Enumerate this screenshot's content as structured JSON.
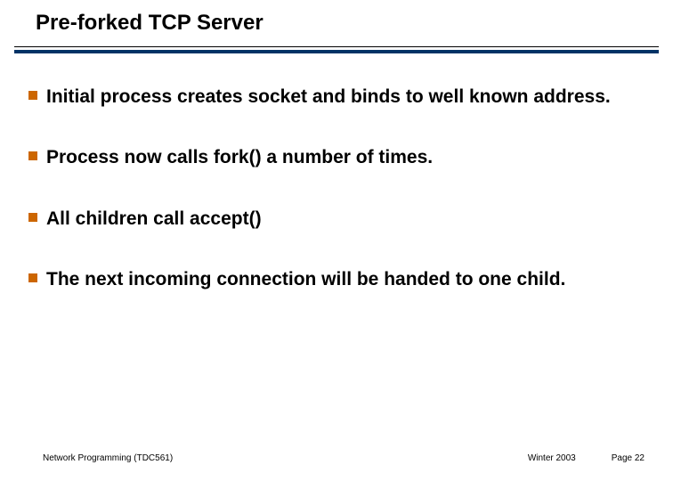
{
  "slide": {
    "title": "Pre-forked TCP Server",
    "title_fontsize": 24,
    "title_color": "#000000",
    "rule_thin_color": "#000000",
    "rule_thick_color": "#003366",
    "rule_thick_height": 4,
    "background_color": "#ffffff",
    "bullet_marker_color": "#cc6600",
    "bullet_marker_size": 10,
    "bullet_fontsize": 21,
    "bullet_color": "#000000",
    "bullets": [
      "Initial process creates socket and binds to well known address.",
      "Process now calls fork() a number of times.",
      "All children call accept()",
      "The next incoming connection will be handed to one child."
    ],
    "footer": {
      "left": "Network Programming (TDC561)",
      "center_right": "Winter 2003",
      "right": "Page 22",
      "fontsize": 10,
      "color": "#000000"
    }
  }
}
